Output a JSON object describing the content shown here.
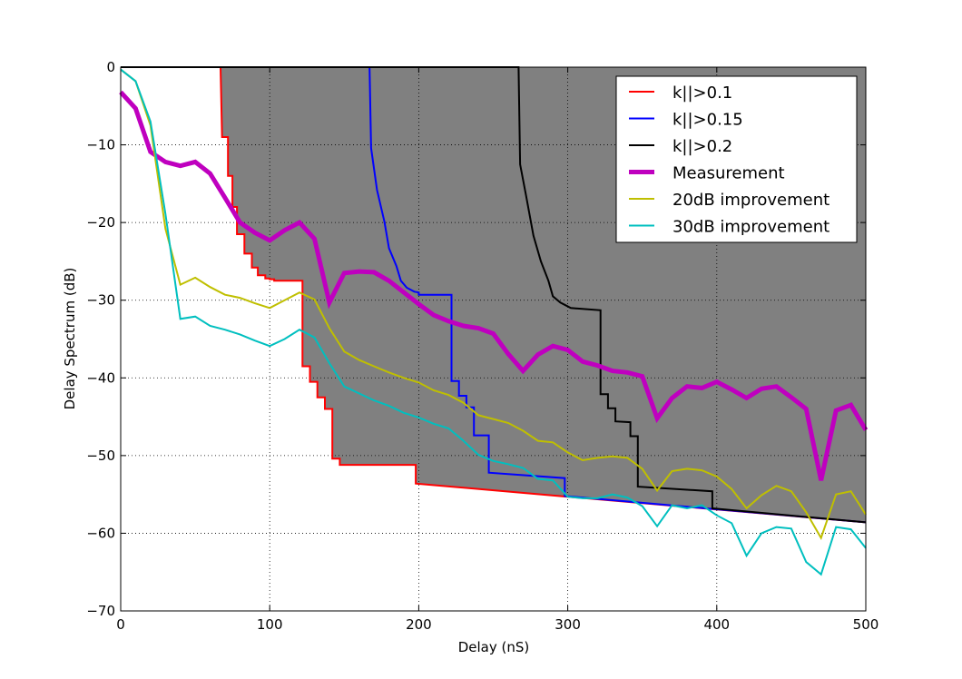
{
  "chart_data": {
    "type": "line",
    "title": "",
    "xlabel": "Delay (nS)",
    "ylabel": "Delay Spectrum (dB)",
    "xlim": [
      0,
      500
    ],
    "ylim": [
      -70,
      0
    ],
    "xticks": [
      0,
      100,
      200,
      300,
      400,
      500
    ],
    "yticks": [
      0,
      -10,
      -20,
      -30,
      -40,
      -50,
      -60,
      -70
    ],
    "xtick_labels": [
      "0",
      "100",
      "200",
      "300",
      "400",
      "500"
    ],
    "ytick_labels": [
      "0",
      "−10",
      "−20",
      "−30",
      "−40",
      "−50",
      "−60",
      "−70"
    ],
    "grid": true,
    "legend_position": "top-right",
    "series": [
      {
        "name": "k||>0.1",
        "color": "#ff0000",
        "style": "step",
        "fill": "#808080",
        "x": [
          0,
          67,
          68,
          68,
          72,
          72,
          75,
          75,
          78,
          78,
          83,
          83,
          88,
          88,
          92,
          92,
          97,
          97,
          100,
          100,
          103,
          103,
          122,
          122,
          127,
          127,
          132,
          132,
          137,
          137,
          142,
          142,
          147,
          147,
          198,
          198,
          300,
          500
        ],
        "y": [
          0,
          0,
          -9,
          -9,
          -9,
          -14,
          -14,
          -18,
          -18,
          -21.5,
          -21.5,
          -24,
          -24,
          -25.8,
          -25.8,
          -26.8,
          -26.8,
          -27.2,
          -27.2,
          -27.3,
          -27.3,
          -27.5,
          -27.5,
          -38.5,
          -38.5,
          -40.5,
          -40.5,
          -42.5,
          -42.5,
          -44,
          -44,
          -50.4,
          -50.4,
          -51.2,
          -51.2,
          -53.6,
          -55.3,
          -58.6
        ]
      },
      {
        "name": "k||>0.15",
        "color": "#0000ff",
        "style": "step",
        "fill": "#bfbfbf",
        "x": [
          0,
          167,
          168,
          168,
          172,
          172,
          177,
          177,
          180,
          180,
          185,
          185,
          188,
          188,
          192,
          192,
          197,
          197,
          200,
          200,
          222,
          222,
          227,
          227,
          232,
          232,
          237,
          237,
          247,
          247,
          298,
          298,
          500
        ],
        "y": [
          0,
          0,
          -10.4,
          -10.4,
          -15.8,
          -15.8,
          -19.9,
          -19.9,
          -23.3,
          -23.3,
          -25.6,
          -25.6,
          -27.5,
          -27.5,
          -28.4,
          -28.4,
          -28.9,
          -28.9,
          -29,
          -29.3,
          -29.3,
          -40.4,
          -40.4,
          -42.3,
          -42.3,
          -43.8,
          -43.8,
          -47.4,
          -47.4,
          -52.2,
          -52.9,
          -55.2,
          -58.6
        ]
      },
      {
        "name": "k||>0.2",
        "color": "#000000",
        "style": "step",
        "fill": "#e5e5e5",
        "x": [
          0,
          267,
          268,
          268,
          272,
          272,
          277,
          277,
          282,
          282,
          287,
          287,
          290,
          290,
          295,
          295,
          298,
          298,
          302,
          302,
          322,
          322,
          327,
          327,
          332,
          332,
          342,
          342,
          347,
          347,
          397,
          397,
          500
        ],
        "y": [
          0,
          0,
          -12.5,
          -12.5,
          -16.5,
          -16.5,
          -21.7,
          -21.7,
          -25,
          -25,
          -27.5,
          -27.5,
          -29.5,
          -29.5,
          -30.3,
          -30.3,
          -30.6,
          -30.6,
          -31,
          -31,
          -31.3,
          -42.1,
          -42.1,
          -43.9,
          -43.9,
          -45.6,
          -45.7,
          -47.5,
          -47.5,
          -54,
          -54.6,
          -56.8,
          -58.6
        ]
      },
      {
        "name": "Measurement",
        "color": "#bf00bf",
        "style": "line",
        "x": [
          0,
          10,
          20,
          30,
          40,
          50,
          60,
          70,
          80,
          90,
          100,
          110,
          120,
          130,
          140,
          150,
          160,
          170,
          180,
          190,
          200,
          210,
          220,
          230,
          240,
          250,
          260,
          270,
          280,
          290,
          300,
          310,
          320,
          330,
          340,
          350,
          360,
          370,
          380,
          390,
          400,
          410,
          420,
          430,
          440,
          450,
          460,
          470,
          480,
          490,
          500
        ],
        "y": [
          -3.2,
          -5.3,
          -10.9,
          -12.2,
          -12.7,
          -12.2,
          -13.7,
          -16.8,
          -20,
          -21.3,
          -22.3,
          -21,
          -20,
          -22.1,
          -30.3,
          -26.5,
          -26.3,
          -26.4,
          -27.5,
          -29,
          -30.5,
          -31.9,
          -32.7,
          -33.3,
          -33.6,
          -34.3,
          -36.9,
          -39.1,
          -37,
          -35.9,
          -36.4,
          -37.9,
          -38.4,
          -39.1,
          -39.3,
          -39.8,
          -45.2,
          -42.6,
          -41.1,
          -41.3,
          -40.5,
          -41.5,
          -42.6,
          -41.4,
          -41.1,
          -42.5,
          -44,
          -53.2,
          -44.2,
          -43.5,
          -46.7
        ]
      },
      {
        "name": "20dB improvement",
        "color": "#bfbf00",
        "style": "line",
        "x": [
          0,
          10,
          20,
          30,
          40,
          50,
          60,
          70,
          80,
          90,
          100,
          110,
          120,
          130,
          140,
          150,
          160,
          170,
          180,
          190,
          200,
          210,
          220,
          230,
          240,
          250,
          260,
          270,
          280,
          290,
          300,
          310,
          320,
          330,
          340,
          350,
          360,
          370,
          380,
          390,
          400,
          410,
          420,
          430,
          440,
          450,
          460,
          470,
          480,
          490,
          500
        ],
        "y": [
          -0.3,
          -1.8,
          -7.5,
          -20.8,
          -28,
          -27.1,
          -28.3,
          -29.3,
          -29.7,
          -30.4,
          -31,
          -30,
          -29,
          -29.9,
          -33.6,
          -36.6,
          -37.7,
          -38.5,
          -39.3,
          -40,
          -40.6,
          -41.6,
          -42.2,
          -43.2,
          -44.8,
          -45.3,
          -45.8,
          -46.8,
          -48.1,
          -48.3,
          -49.6,
          -50.6,
          -50.3,
          -50.1,
          -50.3,
          -51.7,
          -54.5,
          -52,
          -51.7,
          -51.9,
          -52.7,
          -54.3,
          -56.8,
          -55.1,
          -53.9,
          -54.6,
          -57.3,
          -60.6,
          -55,
          -54.6,
          -57.6
        ]
      },
      {
        "name": "30dB improvement",
        "color": "#00bfbf",
        "style": "line",
        "x": [
          0,
          10,
          20,
          30,
          40,
          50,
          60,
          70,
          80,
          90,
          100,
          110,
          120,
          130,
          140,
          150,
          160,
          170,
          180,
          190,
          200,
          210,
          220,
          230,
          240,
          250,
          260,
          270,
          280,
          290,
          300,
          310,
          320,
          330,
          340,
          350,
          360,
          370,
          380,
          390,
          400,
          410,
          420,
          430,
          440,
          450,
          460,
          470,
          480,
          490,
          500
        ],
        "y": [
          -0.3,
          -1.8,
          -7,
          -18.9,
          -32.4,
          -32.1,
          -33.3,
          -33.8,
          -34.4,
          -35.2,
          -35.9,
          -35,
          -33.8,
          -34.8,
          -38.1,
          -41.1,
          -42,
          -42.9,
          -43.6,
          -44.5,
          -45.1,
          -45.9,
          -46.5,
          -48.1,
          -49.9,
          -50.7,
          -51.1,
          -51.6,
          -53,
          -53.2,
          -55.3,
          -55.5,
          -55.5,
          -55,
          -55.4,
          -56.5,
          -59.1,
          -56.4,
          -56.8,
          -56.4,
          -57.7,
          -58.7,
          -62.9,
          -60,
          -59.2,
          -59.4,
          -63.7,
          -65.3,
          -59.2,
          -59.5,
          -61.9
        ]
      }
    ]
  }
}
